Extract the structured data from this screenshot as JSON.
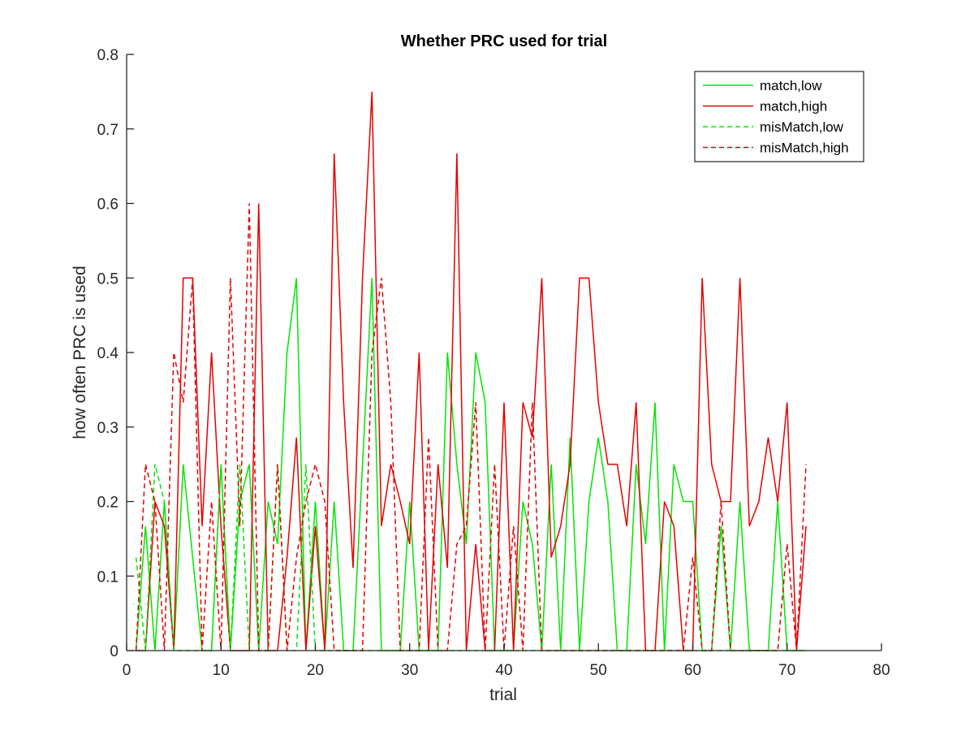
{
  "chart_data": {
    "type": "line",
    "title": "Whether PRC used for trial",
    "xlabel": "trial",
    "ylabel": "how often PRC is used",
    "xlim": [
      0,
      80
    ],
    "ylim": [
      0,
      0.8
    ],
    "xticks": [
      0,
      10,
      20,
      30,
      40,
      50,
      60,
      70,
      80
    ],
    "yticks": [
      0,
      0.1,
      0.2,
      0.3,
      0.4,
      0.5,
      0.6,
      0.7,
      0.8
    ],
    "xtick_labels": [
      "0",
      "10",
      "20",
      "30",
      "40",
      "50",
      "60",
      "70",
      "80"
    ],
    "ytick_labels": [
      "0",
      "0.1",
      "0.2",
      "0.3",
      "0.4",
      "0.5",
      "0.6",
      "0.7",
      "0.8"
    ],
    "grid": false,
    "legend_position": "top-right",
    "x": [
      1,
      2,
      3,
      4,
      5,
      6,
      7,
      8,
      9,
      10,
      11,
      12,
      13,
      14,
      15,
      16,
      17,
      18,
      19,
      20,
      21,
      22,
      23,
      24,
      25,
      26,
      27,
      28,
      29,
      30,
      31,
      32,
      33,
      34,
      35,
      36,
      37,
      38,
      39,
      40,
      41,
      42,
      43,
      44,
      45,
      46,
      47,
      48,
      49,
      50,
      51,
      52,
      53,
      54,
      55,
      56,
      57,
      58,
      59,
      60,
      61,
      62,
      63,
      64,
      65,
      66,
      67,
      68,
      69,
      70,
      71,
      72
    ],
    "series": [
      {
        "name": "match,low",
        "color": "#00e600",
        "dash": "solid",
        "values": [
          0,
          0.167,
          0,
          0.2,
          0,
          0.25,
          0.125,
          0,
          0,
          0.25,
          0,
          0.2,
          0.25,
          0,
          0.2,
          0.143,
          0.4,
          0.5,
          0,
          0.2,
          0,
          0.2,
          0,
          0,
          0.25,
          0.5,
          0,
          0,
          0,
          0.2,
          0,
          0,
          0,
          0.4,
          0.25,
          0.143,
          0.4,
          0.333,
          0,
          0,
          0,
          0.2,
          0.143,
          0,
          0.25,
          0,
          0.286,
          0,
          0.2,
          0.286,
          0.2,
          0,
          0,
          0.25,
          0.143,
          0.333,
          0,
          0.25,
          0.2,
          0.2,
          0,
          0,
          0.167,
          0,
          0.2,
          0,
          0,
          0,
          0.2,
          0,
          0,
          0
        ]
      },
      {
        "name": "match,high",
        "color": "#e60000",
        "dash": "solid",
        "values": [
          0,
          0,
          0.2,
          0.167,
          0,
          0.5,
          0.5,
          0.167,
          0.4,
          0.167,
          0,
          0,
          0,
          0.6,
          0,
          0,
          0.125,
          0.286,
          0,
          0.167,
          0,
          0.667,
          0.333,
          0.111,
          0.5,
          0.75,
          0.167,
          0.25,
          0.2,
          0.143,
          0.4,
          0,
          0.25,
          0.111,
          0.667,
          0,
          0.143,
          0,
          0,
          0.333,
          0,
          0.333,
          0.286,
          0.5,
          0.125,
          0.167,
          0.25,
          0.5,
          0.5,
          0.333,
          0.25,
          0.25,
          0.167,
          0.333,
          0,
          0,
          0.2,
          0.167,
          0,
          0,
          0.5,
          0.25,
          0.2,
          0.2,
          0.5,
          0.167,
          0.2,
          0.286,
          0.2,
          0.333,
          0,
          0.167
        ]
      },
      {
        "name": "misMatch,low",
        "color": "#00e600",
        "dash": "dashed",
        "values": [
          0.125,
          0,
          0.25,
          0.2,
          0,
          0,
          0,
          0,
          0,
          0.25,
          0,
          0.25,
          0,
          0,
          0,
          0.25,
          0,
          0,
          0.25,
          0,
          0,
          0,
          0,
          0,
          0,
          0,
          0,
          0,
          0,
          0,
          0,
          0,
          0,
          0,
          0,
          0,
          0,
          0,
          0,
          0,
          0,
          0,
          0,
          0,
          0,
          0,
          0,
          0,
          0,
          0,
          0,
          0,
          0,
          0,
          0,
          0,
          0,
          0,
          0,
          0,
          0,
          0,
          0,
          0,
          0,
          0,
          0,
          0,
          0,
          0,
          0,
          0
        ]
      },
      {
        "name": "misMatch,high",
        "color": "#e60000",
        "dash": "dashed",
        "values": [
          0,
          0.25,
          0.2,
          0,
          0.4,
          0.333,
          0.5,
          0,
          0.2,
          0,
          0.5,
          0.167,
          0.6,
          0,
          0,
          0.25,
          0,
          0.125,
          0.2,
          0.25,
          0.2,
          0,
          0,
          0,
          0,
          0.4,
          0.5,
          0.333,
          0,
          0,
          0,
          0.286,
          0,
          0,
          0.143,
          0.167,
          0.333,
          0,
          0.25,
          0,
          0.167,
          0,
          0.333,
          0,
          0,
          0,
          0,
          0,
          0,
          0,
          0,
          0,
          0,
          0,
          0,
          0,
          0,
          0,
          0,
          0.125,
          0,
          0,
          0.2,
          0,
          0,
          0,
          0,
          0,
          0,
          0.143,
          0,
          0.25
        ]
      }
    ]
  }
}
